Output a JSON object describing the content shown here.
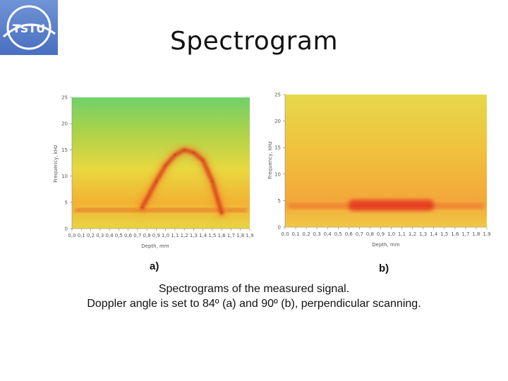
{
  "logo": {
    "text": "TSTU"
  },
  "title": "Spectrogram",
  "charts": [
    {
      "panel_label": "a)",
      "xlabel": "Depth, mm",
      "ylabel": "Frequency, kHz",
      "x_ticks": [
        "0,0",
        "0,1",
        "0,2",
        "0,3",
        "0,4",
        "0,5",
        "0,6",
        "0,7",
        "0,8",
        "0,9",
        "1,0",
        "1,1",
        "1,2",
        "1,3",
        "1,4",
        "1,5",
        "1,6",
        "1,7",
        "1,8",
        "1,9"
      ],
      "y_ticks": [
        "0",
        "5",
        "10",
        "15",
        "20",
        "25"
      ]
    },
    {
      "panel_label": "b)",
      "xlabel": "Depth, mm",
      "ylabel": "Frequency, kHz",
      "x_ticks": [
        "0,0",
        "0,1",
        "0,2",
        "0,3",
        "0,4",
        "0,5",
        "0,6",
        "0,7",
        "0,8",
        "0,9",
        "1,0",
        "1,1",
        "1,2",
        "1,3",
        "1,4",
        "1,5",
        "1,6",
        "1,7",
        "1,8",
        "1,9"
      ],
      "y_ticks": [
        "0",
        "5",
        "10",
        "15",
        "20",
        "25"
      ]
    }
  ],
  "chart_data": [
    {
      "type": "heatmap",
      "xlabel": "Depth, mm",
      "ylabel": "Frequency, kHz",
      "xlim": [
        0,
        1.9
      ],
      "ylim": [
        0,
        25
      ],
      "x": [
        0.75,
        0.9,
        1.0,
        1.1,
        1.2,
        1.3,
        1.4,
        1.5,
        1.6
      ],
      "y": [
        4,
        9,
        12,
        14,
        15,
        14.5,
        13,
        9,
        3
      ],
      "baseline_khz": 3.5
    },
    {
      "type": "heatmap",
      "xlabel": "Depth, mm",
      "ylabel": "Frequency, kHz",
      "xlim": [
        0,
        1.9
      ],
      "ylim": [
        0,
        25
      ],
      "baseline_khz": 4,
      "band_depth_range": [
        0.6,
        1.4
      ]
    }
  ],
  "caption": {
    "line1": "Spectrograms of the measured signal.",
    "line2": "Doppler angle is set to 84º (a) and 90º (b), perpendicular scanning."
  }
}
